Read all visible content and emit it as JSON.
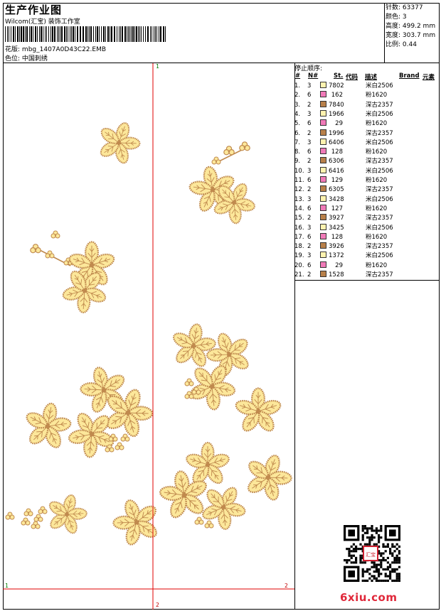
{
  "header": {
    "title": "生产作业图",
    "company": "Wilcom(汇宝) 装饰工作室",
    "pattern_label": "花版:",
    "pattern_value": "mbg_1407A0D43C22.EMB",
    "color_label": "色位:",
    "color_value": "中国刺绣"
  },
  "stats": [
    {
      "label": "针数:",
      "value": "63377"
    },
    {
      "label": "颜色:",
      "value": "3"
    },
    {
      "label": "高度:",
      "value": "499.2 mm"
    },
    {
      "label": "宽度:",
      "value": "303.7 mm"
    },
    {
      "label": "比例:",
      "value": "0.44"
    }
  ],
  "guides": {
    "top_v": "1",
    "bottom_v": "2",
    "left_h": "1",
    "right_h": "2"
  },
  "sequence": {
    "title": "停止顺序:",
    "columns": {
      "hash": "#",
      "n": "N#",
      "st": "St.",
      "code": "代码",
      "desc": "描述",
      "brand": "Brand",
      "elem": "元素"
    },
    "rows": [
      {
        "idx": "1.",
        "n": "3",
        "st": "7802",
        "desc": "米白2506",
        "color": "#fff3b0"
      },
      {
        "idx": "2.",
        "n": "6",
        "st": "162",
        "desc": "粉1620",
        "color": "#f07ab8"
      },
      {
        "idx": "3.",
        "n": "2",
        "st": "7840",
        "desc": "深古2357",
        "color": "#b8804a"
      },
      {
        "idx": "4.",
        "n": "3",
        "st": "1966",
        "desc": "米白2506",
        "color": "#fff3b0"
      },
      {
        "idx": "5.",
        "n": "6",
        "st": "29",
        "desc": "粉1620",
        "color": "#f07ab8"
      },
      {
        "idx": "6.",
        "n": "2",
        "st": "1996",
        "desc": "深古2357",
        "color": "#b8804a"
      },
      {
        "idx": "7.",
        "n": "3",
        "st": "6406",
        "desc": "米白2506",
        "color": "#fff3b0"
      },
      {
        "idx": "8.",
        "n": "6",
        "st": "128",
        "desc": "粉1620",
        "color": "#f07ab8"
      },
      {
        "idx": "9.",
        "n": "2",
        "st": "6306",
        "desc": "深古2357",
        "color": "#b8804a"
      },
      {
        "idx": "10.",
        "n": "3",
        "st": "6416",
        "desc": "米白2506",
        "color": "#fff3b0"
      },
      {
        "idx": "11.",
        "n": "6",
        "st": "129",
        "desc": "粉1620",
        "color": "#f07ab8"
      },
      {
        "idx": "12.",
        "n": "2",
        "st": "6305",
        "desc": "深古2357",
        "color": "#b8804a"
      },
      {
        "idx": "13.",
        "n": "3",
        "st": "3428",
        "desc": "米白2506",
        "color": "#fff3b0"
      },
      {
        "idx": "14.",
        "n": "6",
        "st": "127",
        "desc": "粉1620",
        "color": "#f07ab8"
      },
      {
        "idx": "15.",
        "n": "2",
        "st": "3927",
        "desc": "深古2357",
        "color": "#b8804a"
      },
      {
        "idx": "16.",
        "n": "3",
        "st": "3425",
        "desc": "米白2506",
        "color": "#fff3b0"
      },
      {
        "idx": "17.",
        "n": "6",
        "st": "128",
        "desc": "粉1620",
        "color": "#f07ab8"
      },
      {
        "idx": "18.",
        "n": "2",
        "st": "3926",
        "desc": "深古2357",
        "color": "#b8804a"
      },
      {
        "idx": "19.",
        "n": "3",
        "st": "1372",
        "desc": "米白2506",
        "color": "#fff3b0"
      },
      {
        "idx": "20.",
        "n": "6",
        "st": "29",
        "desc": "粉1620",
        "color": "#f07ab8"
      },
      {
        "idx": "21.",
        "n": "2",
        "st": "1528",
        "desc": "深古2357",
        "color": "#b8804a"
      }
    ]
  },
  "watermark": {
    "logo_text": "6xiu.com",
    "seal_text": "汇宝"
  },
  "colors": {
    "petal_fill": "#fce79a",
    "petal_outline": "#c08a4e",
    "guide": "#e00000",
    "logo": "#e0283a"
  }
}
